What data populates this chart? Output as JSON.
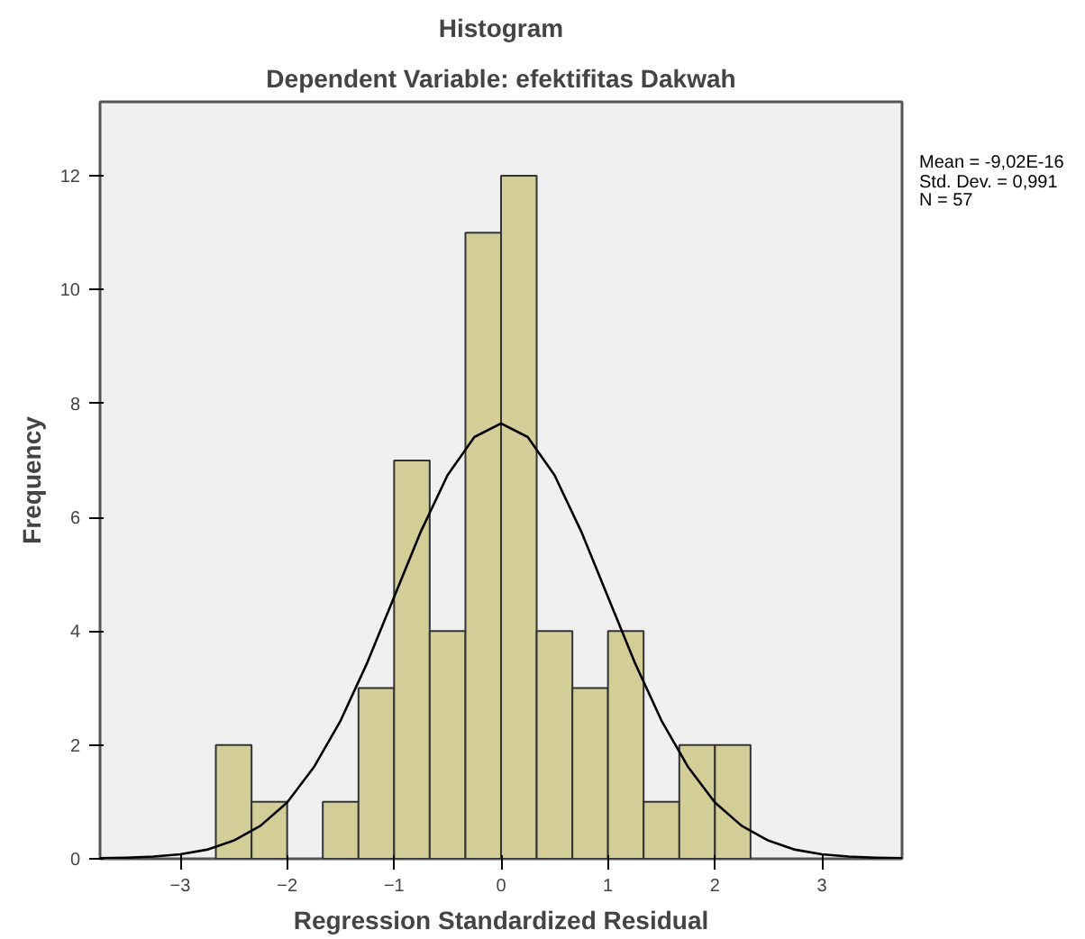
{
  "chart_data": {
    "type": "histogram",
    "title": "Histogram",
    "subtitle": "Dependent Variable: efektifitas Dakwah",
    "xlabel": "Regression Standardized Residual",
    "ylabel": "Frequency",
    "bins": [
      -2.667,
      -2.333,
      -2.0,
      -1.667,
      -1.333,
      -1.0,
      -0.667,
      -0.333,
      0.0,
      0.333,
      0.667,
      1.0,
      1.333,
      1.667,
      2.0,
      2.333
    ],
    "values": [
      2,
      1,
      0,
      1,
      3,
      7,
      4,
      11,
      12,
      4,
      3,
      4,
      1,
      2,
      2
    ],
    "color": "#d3ce97",
    "series": [
      {
        "type": "line",
        "color": "#000000",
        "x": [
          -3.75,
          -3.5,
          -3.25,
          -3.0,
          -2.75,
          -2.5,
          -2.25,
          -2.0,
          -1.75,
          -1.5,
          -1.25,
          -1.0,
          -0.75,
          -0.5,
          -0.25,
          0.0,
          0.25,
          0.5,
          0.75,
          1.0,
          1.25,
          1.5,
          1.75,
          2.0,
          2.25,
          2.5,
          2.75,
          3.0,
          3.25,
          3.5,
          3.75
        ],
        "values": [
          0.01,
          0.02,
          0.04,
          0.08,
          0.16,
          0.32,
          0.58,
          0.99,
          1.61,
          2.43,
          3.45,
          4.6,
          5.75,
          6.74,
          7.41,
          7.65,
          7.41,
          6.74,
          5.75,
          4.6,
          3.45,
          2.43,
          1.61,
          0.99,
          0.58,
          0.32,
          0.16,
          0.08,
          0.04,
          0.02,
          0.01
        ]
      }
    ],
    "xlim": [
      -3.75,
      3.75
    ],
    "ylim": [
      0,
      13.3
    ],
    "xticks": [
      -3,
      -2,
      -1,
      0,
      1,
      2,
      3
    ],
    "yticks": [
      0,
      2,
      4,
      6,
      8,
      10,
      12
    ],
    "grid": false,
    "annotations": [
      "Mean = -9,02E-16\nStd. Dev. = 0,991\nN = 57"
    ]
  }
}
